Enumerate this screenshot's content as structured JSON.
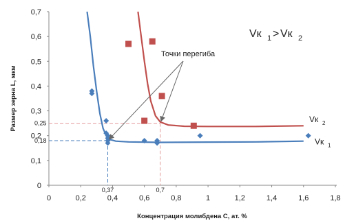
{
  "chart_data": {
    "type": "scatter",
    "xlabel": "Концентрация молибдена С, ат. %",
    "ylabel": "Размер зерна L, мкм",
    "xlim": [
      0,
      1.8
    ],
    "ylim": [
      0,
      0.7
    ],
    "x_ticks": [
      "0",
      "0,2",
      "0,4",
      "0,6",
      "0,8",
      "1",
      "1,2",
      "1,4",
      "1,6",
      "1,8"
    ],
    "y_ticks": [
      "0",
      "0,1",
      "0,2",
      "0,3",
      "0,4",
      "0,5",
      "0,6",
      "0,7"
    ],
    "grid": false,
    "relation": {
      "left": "Vк",
      "left_sub": "1",
      "gt": ">",
      "right": "Vк",
      "right_sub": "2"
    },
    "annotation": "Точки перегиба",
    "inflection_points": [
      {
        "x": 0.37,
        "y": 0.18,
        "x_label": "0,37",
        "y_label": "0,18"
      },
      {
        "x": 0.7,
        "y": 0.25,
        "x_label": "0,7",
        "y_label": "0,25"
      }
    ],
    "series": [
      {
        "name": "Vк",
        "name_sub": "1",
        "color": "#4a7ebb",
        "marker": "diamond",
        "points": [
          [
            0.27,
            0.38
          ],
          [
            0.27,
            0.37
          ],
          [
            0.36,
            0.26
          ],
          [
            0.36,
            0.21
          ],
          [
            0.37,
            0.2
          ],
          [
            0.37,
            0.19
          ],
          [
            0.37,
            0.18
          ],
          [
            0.37,
            0.17
          ],
          [
            0.6,
            0.18
          ],
          [
            0.68,
            0.18
          ],
          [
            0.68,
            0.17
          ],
          [
            0.95,
            0.2
          ],
          [
            1.63,
            0.2
          ]
        ],
        "curve": [
          [
            0.24,
            0.7
          ],
          [
            0.26,
            0.6
          ],
          [
            0.28,
            0.48
          ],
          [
            0.3,
            0.38
          ],
          [
            0.32,
            0.29
          ],
          [
            0.34,
            0.23
          ],
          [
            0.36,
            0.2
          ],
          [
            0.38,
            0.185
          ],
          [
            0.42,
            0.178
          ],
          [
            0.5,
            0.175
          ],
          [
            0.7,
            0.173
          ],
          [
            1.0,
            0.174
          ],
          [
            1.3,
            0.175
          ],
          [
            1.6,
            0.178
          ]
        ]
      },
      {
        "name": "Vк",
        "name_sub": "2",
        "color": "#c0504d",
        "marker": "square",
        "points": [
          [
            0.5,
            0.57
          ],
          [
            0.65,
            0.58
          ],
          [
            0.71,
            0.36
          ],
          [
            0.6,
            0.26
          ],
          [
            0.91,
            0.24
          ]
        ],
        "curve": [
          [
            0.56,
            0.7
          ],
          [
            0.58,
            0.6
          ],
          [
            0.6,
            0.5
          ],
          [
            0.62,
            0.41
          ],
          [
            0.64,
            0.34
          ],
          [
            0.67,
            0.28
          ],
          [
            0.7,
            0.255
          ],
          [
            0.75,
            0.243
          ],
          [
            0.85,
            0.238
          ],
          [
            1.0,
            0.237
          ],
          [
            1.3,
            0.237
          ],
          [
            1.6,
            0.24
          ]
        ]
      }
    ]
  }
}
